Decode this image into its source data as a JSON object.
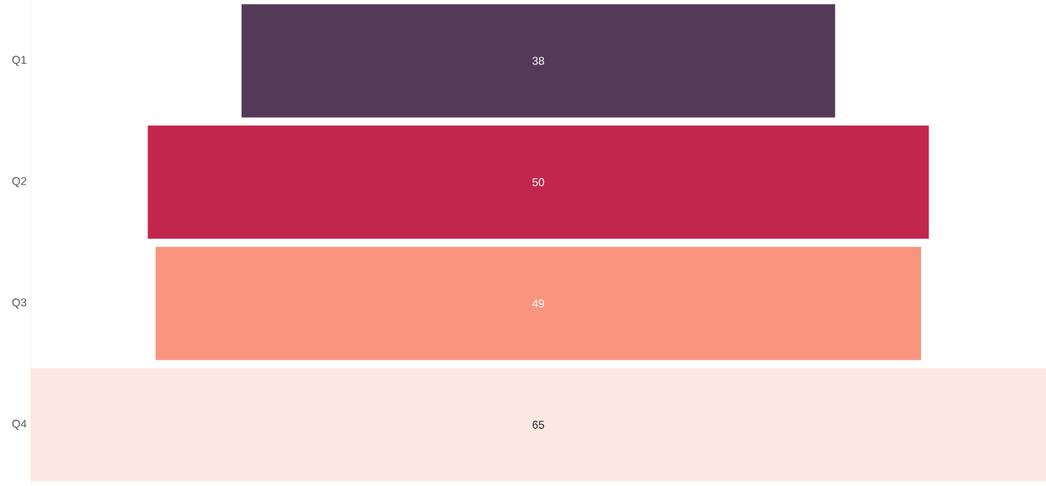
{
  "chart_data": {
    "type": "other",
    "categories": [
      "Q1",
      "Q2",
      "Q3",
      "Q4"
    ],
    "values": [
      38,
      50,
      49,
      65
    ],
    "colors": [
      "#543a58",
      "#c2264d",
      "#f9957e",
      "#fce8e3"
    ],
    "data_labels": true
  }
}
